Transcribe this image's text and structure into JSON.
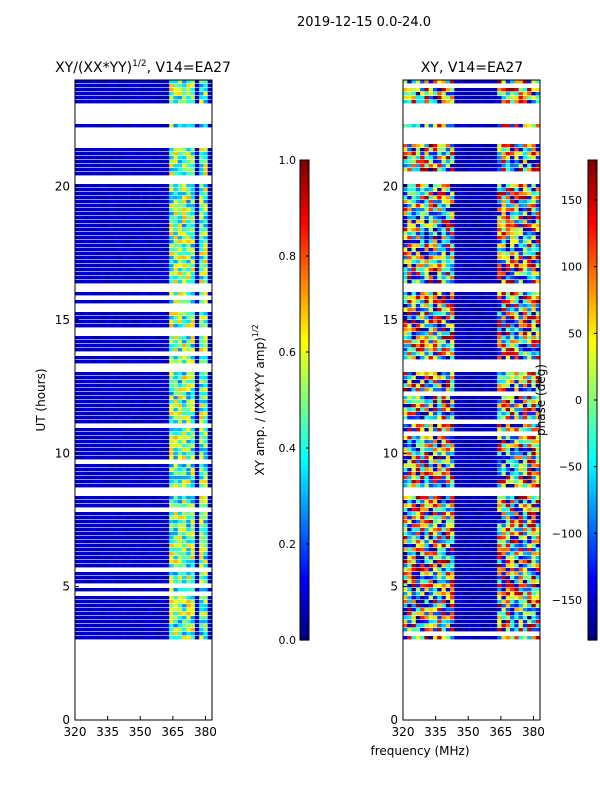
{
  "figure_title": "2019-12-15 0.0-24.0",
  "colors": {
    "low": "#00007f",
    "high": "#7f0000",
    "gap": "#ffffff"
  },
  "chart_data": [
    {
      "type": "heatmap",
      "title_main": "XY/(XX*YY)",
      "title_sup": "1/2",
      "title_rest": ", V14=EA27",
      "xlabel": "",
      "ylabel": "UT (hours)",
      "xlim": [
        320,
        383
      ],
      "ylim": [
        0,
        24
      ],
      "x_ticks": [
        320,
        335,
        350,
        365,
        380
      ],
      "y_ticks": [
        0,
        5,
        10,
        15,
        20
      ],
      "colorbar": {
        "label_main": "XY amp. / (XX*YY amp)",
        "label_sup": "1/2",
        "min": 0.0,
        "max": 1.0,
        "ticks": [
          0.0,
          0.2,
          0.4,
          0.6,
          0.8,
          1.0
        ],
        "tick_labels": [
          "0.0",
          "0.2",
          "0.4",
          "0.6",
          "0.8",
          "1.0"
        ]
      },
      "data_start_hour": 3.0,
      "blank_hour_ranges": [
        [
          22.3,
          23.0
        ],
        [
          21.5,
          22.1
        ],
        [
          20.0,
          20.3
        ],
        [
          16.0,
          16.2
        ],
        [
          13.0,
          13.3
        ],
        [
          8.3,
          8.6
        ]
      ],
      "active_freq_bands": [
        [
          362,
          366
        ],
        [
          366,
          370
        ],
        [
          371,
          375
        ],
        [
          376,
          380
        ]
      ],
      "background_value": 0.05,
      "band_value": 0.5
    },
    {
      "type": "heatmap",
      "title_main": "XY, V14=EA27",
      "title_sup": "",
      "title_rest": "",
      "xlabel": "frequency (MHz)",
      "ylabel": "",
      "xlim": [
        320,
        383
      ],
      "ylim": [
        0,
        24
      ],
      "x_ticks": [
        320,
        335,
        350,
        365,
        380
      ],
      "y_ticks": [
        0,
        5,
        10,
        15,
        20
      ],
      "colorbar": {
        "label_main": "phase (deg)",
        "label_sup": "",
        "min": -180,
        "max": 180,
        "ticks": [
          -150,
          -100,
          -50,
          0,
          50,
          100,
          150
        ],
        "tick_labels": [
          "−150",
          "−100",
          "−50",
          "0",
          "50",
          "100",
          "150"
        ]
      },
      "data_start_hour": 3.0,
      "blank_hour_ranges": [
        [
          22.3,
          23.0
        ],
        [
          21.5,
          22.1
        ],
        [
          20.0,
          20.3
        ],
        [
          16.0,
          16.2
        ],
        [
          13.0,
          13.3
        ],
        [
          8.3,
          8.6
        ]
      ],
      "active_freq_bands": [
        [
          320,
          342
        ],
        [
          362,
          383
        ]
      ],
      "background_value": -170,
      "band_value": 20
    }
  ]
}
